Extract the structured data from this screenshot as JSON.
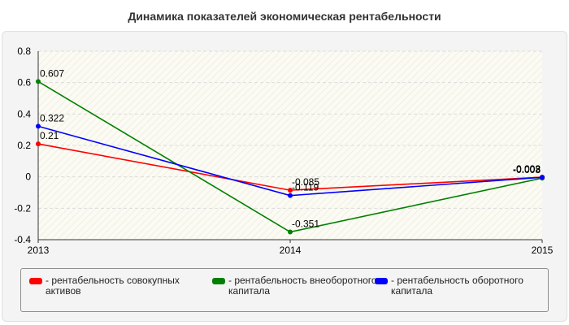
{
  "chart_data": {
    "type": "line",
    "title": "Динамика показателей экономическая рентабельности",
    "x": [
      "2013",
      "2014",
      "2015"
    ],
    "ylim": [
      -0.4,
      0.8
    ],
    "yticks": [
      "0.8",
      "0.6",
      "0.4",
      "0.2",
      "0",
      "-0.2",
      "-0.4"
    ],
    "ytick_values": [
      0.8,
      0.6,
      0.4,
      0.2,
      0,
      -0.2,
      -0.4
    ],
    "grid": true,
    "legend_position": "bottom",
    "series": [
      {
        "name": "- рентабельность совокупных активов",
        "color": "#ff0000",
        "values": [
          0.21,
          -0.085,
          -0.002
        ],
        "labels": [
          "0.21",
          "-0.085",
          "-0.002"
        ]
      },
      {
        "name": "- рентабельность внеоборотного капитала",
        "color": "#008000",
        "values": [
          0.607,
          -0.351,
          -0.008
        ],
        "labels": [
          "0.607",
          "-0.351",
          "-0.008"
        ]
      },
      {
        "name": "- рентабельность оборотного капитала",
        "color": "#0000ff",
        "values": [
          0.322,
          -0.119,
          -0.003
        ],
        "labels": [
          "0.322",
          "-0.119",
          "-0.003"
        ]
      }
    ]
  }
}
